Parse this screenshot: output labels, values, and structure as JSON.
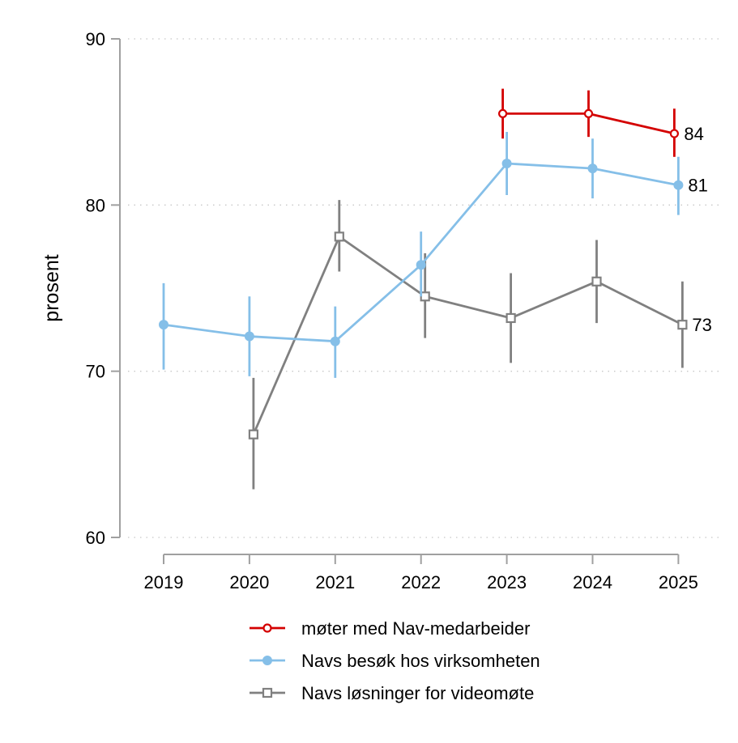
{
  "chart_data": {
    "type": "line",
    "title": "",
    "xlabel": "",
    "ylabel": "prosent",
    "x": [
      "2019",
      "2020",
      "2021",
      "2022",
      "2023",
      "2024",
      "2025"
    ],
    "ylim": [
      60,
      90
    ],
    "yticks": [
      60,
      70,
      80,
      90
    ],
    "grid": true,
    "legend_position": "bottom",
    "series": [
      {
        "name": "møter med Nav-medarbeider",
        "color": "#d40000",
        "marker": "hollow-circle",
        "values": [
          null,
          null,
          null,
          null,
          85.5,
          85.5,
          84.3
        ],
        "ci_low": [
          null,
          null,
          null,
          null,
          84.0,
          84.1,
          82.9
        ],
        "ci_high": [
          null,
          null,
          null,
          null,
          87.0,
          86.9,
          85.8
        ],
        "end_label": "84"
      },
      {
        "name": "Navs besøk hos virksomheten",
        "color": "#85bfe8",
        "marker": "filled-circle",
        "values": [
          72.8,
          72.1,
          71.8,
          76.4,
          82.5,
          82.2,
          81.2
        ],
        "ci_low": [
          70.1,
          69.7,
          69.6,
          74.5,
          80.6,
          80.4,
          79.4
        ],
        "ci_high": [
          75.3,
          74.5,
          73.9,
          78.4,
          84.4,
          84.0,
          82.9
        ],
        "end_label": "81"
      },
      {
        "name": "Navs løsninger for videomøte",
        "color": "#808080",
        "marker": "hollow-square",
        "values": [
          null,
          66.2,
          78.1,
          74.5,
          73.2,
          75.4,
          72.8
        ],
        "ci_low": [
          null,
          62.9,
          76.0,
          72.0,
          70.5,
          72.9,
          70.2
        ],
        "ci_high": [
          null,
          69.6,
          80.3,
          77.1,
          75.9,
          77.9,
          75.4
        ],
        "end_label": "73"
      }
    ]
  }
}
